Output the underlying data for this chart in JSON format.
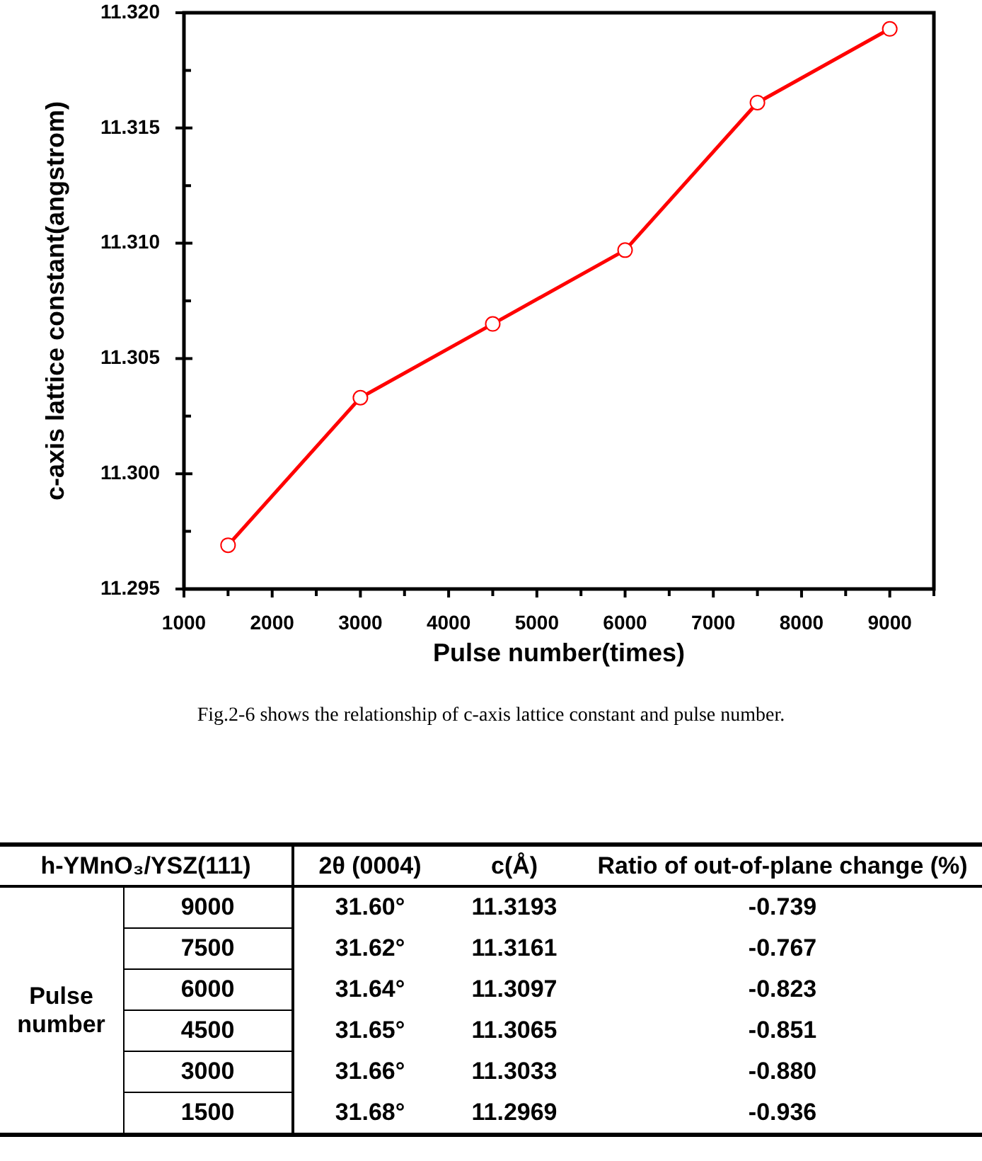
{
  "chart_data": [
    {
      "type": "line",
      "xlabel": "Pulse number(times)",
      "ylabel": "c-axis lattice constant(angstrom)",
      "annotations": [
        "Fig.2-6 shows the relationship of c-axis lattice constant and pulse number."
      ],
      "x": [
        1500,
        3000,
        4500,
        6000,
        7500,
        9000
      ],
      "values": [
        11.2969,
        11.3033,
        11.3065,
        11.3097,
        11.3161,
        11.3193
      ],
      "color": "#ff0000",
      "marker": "circle",
      "line_style": "solid",
      "xlim": [
        1000,
        9500
      ],
      "xticks": [
        1000,
        {
          "value": 1500,
          "label": null
        },
        2000,
        {
          "value": 2500,
          "label": null
        },
        3000,
        {
          "value": 3500,
          "label": null
        },
        4000,
        {
          "value": 4500,
          "label": null
        },
        5000,
        {
          "value": 5500,
          "label": null
        },
        6000,
        {
          "value": 6500,
          "label": null
        },
        7000,
        {
          "value": 7500,
          "label": null
        },
        8000,
        {
          "value": 8500,
          "label": null
        },
        9000,
        {
          "value": 9500,
          "label": null
        }
      ],
      "ylim": [
        11.295,
        11.32
      ],
      "yticks": [
        11.295,
        {
          "value": 11.2975,
          "label": null
        },
        {
          "value": 11.3,
          "label": "11.300"
        },
        {
          "value": 11.3025,
          "label": null
        },
        11.305,
        {
          "value": 11.3075,
          "label": null
        },
        {
          "value": 11.31,
          "label": "11.310"
        },
        {
          "value": 11.3125,
          "label": null
        },
        11.315,
        {
          "value": 11.3175,
          "label": null
        },
        {
          "value": 11.32,
          "label": "11.320"
        }
      ]
    },
    {
      "type": "heatmap",
      "title": "h-YMnO₃/YSZ(111)",
      "ylabel": "Pulse number",
      "categories": [
        "2θ (0004)",
        "c(Å)",
        "Ratio of out-of-plane change (%)"
      ],
      "y_categories": [
        "9000",
        "7500",
        "6000",
        "4500",
        "3000",
        "1500"
      ],
      "cells": [
        [
          31.6,
          11.3193,
          -0.739
        ],
        [
          31.62,
          11.3161,
          -0.767
        ],
        [
          31.64,
          11.3097,
          -0.823
        ],
        [
          31.65,
          11.3065,
          -0.851
        ],
        [
          31.66,
          11.3033,
          -0.88
        ],
        [
          31.68,
          11.2969,
          -0.936
        ]
      ],
      "cell_labels": [
        [
          "31.60°",
          "11.3193",
          "-0.739"
        ],
        [
          "31.62°",
          "11.3161",
          "-0.767"
        ],
        [
          "31.64°",
          "11.3097",
          "-0.823"
        ],
        [
          "31.65°",
          "11.3065",
          "-0.851"
        ],
        [
          "31.66°",
          "11.3033",
          "-0.880"
        ],
        [
          "31.68°",
          "11.2969",
          "-0.936"
        ]
      ]
    }
  ]
}
